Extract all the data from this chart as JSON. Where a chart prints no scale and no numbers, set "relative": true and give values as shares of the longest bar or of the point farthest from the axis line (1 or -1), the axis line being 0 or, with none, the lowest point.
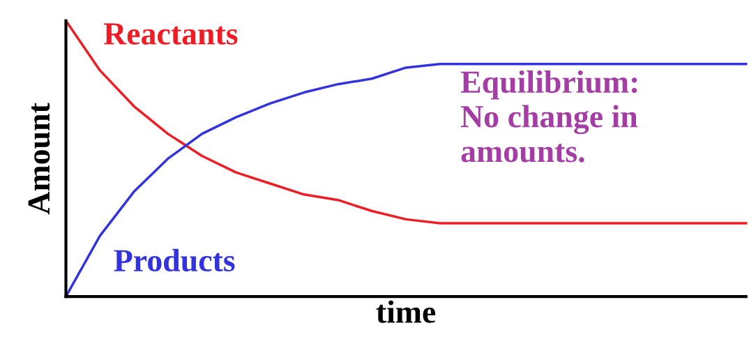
{
  "chart_data": {
    "type": "line",
    "relative": true,
    "xlabel": "time",
    "ylabel": "Amount",
    "legend": false,
    "categories": [
      null,
      null,
      null,
      null,
      null,
      null,
      null,
      null,
      null,
      null,
      null,
      null,
      null,
      null,
      null,
      null,
      null,
      null,
      null,
      null,
      null
    ],
    "series": [
      {
        "name": "Reactants",
        "color": "#ee1c24",
        "values": [
          1.0,
          0.82,
          0.69,
          0.59,
          0.51,
          0.45,
          0.41,
          0.37,
          0.35,
          0.31,
          0.28,
          0.266,
          0.266,
          0.266,
          0.266,
          0.266,
          0.266,
          0.266,
          0.266,
          0.266,
          0.266
        ]
      },
      {
        "name": "Products",
        "color": "#3333dd",
        "values": [
          0.0,
          0.22,
          0.38,
          0.5,
          0.59,
          0.65,
          0.7,
          0.74,
          0.77,
          0.79,
          0.83,
          0.843,
          0.843,
          0.843,
          0.843,
          0.843,
          0.843,
          0.843,
          0.843,
          0.843,
          0.843
        ]
      }
    ],
    "annotations": [
      "Equilibrium:\nNo change in\namounts."
    ]
  }
}
